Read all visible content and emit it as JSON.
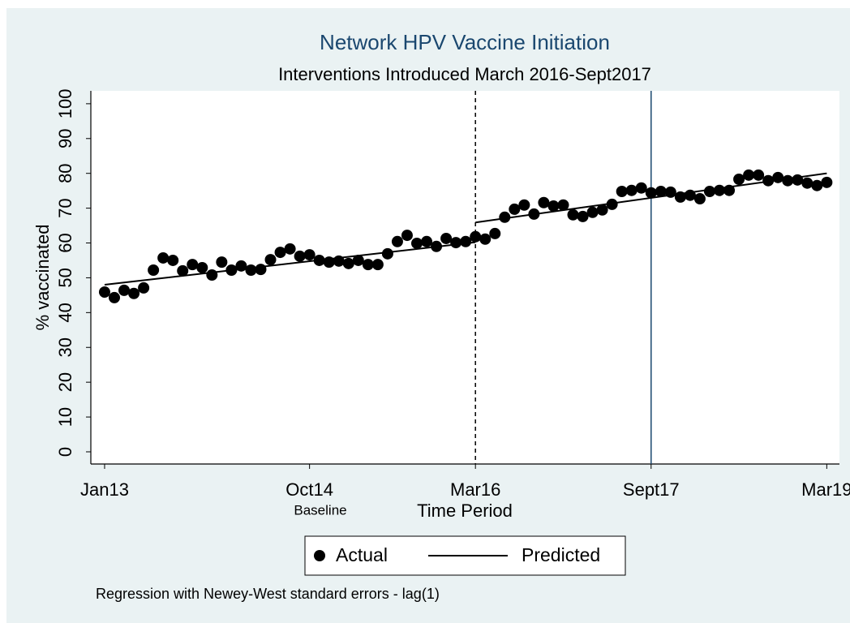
{
  "chart_data": {
    "type": "scatter",
    "title": "Network HPV Vaccine Initiation",
    "subtitle": "Interventions Introduced March 2016-Sept2017",
    "ylabel": "% vaccinated",
    "xlabel": "Time Period",
    "annotation": "Baseline",
    "note": "Regression with Newey-West standard errors - lag(1)",
    "xlim": [
      -1.41,
      75.3
    ],
    "ylim": [
      -3.5,
      103.7
    ],
    "xticks": [
      {
        "value": 0,
        "label": "Jan13"
      },
      {
        "value": 21,
        "label": "Oct14"
      },
      {
        "value": 38,
        "label": "Mar16"
      },
      {
        "value": 56,
        "label": "Sept17"
      },
      {
        "value": 74,
        "label": "Mar19"
      }
    ],
    "yticks": [
      0,
      10,
      20,
      30,
      40,
      50,
      60,
      70,
      80,
      90,
      100
    ],
    "reference_lines": [
      {
        "x": 38,
        "style": "dashed",
        "color": "#000000"
      },
      {
        "x": 56,
        "style": "solid",
        "color": "#1a476f"
      }
    ],
    "series": [
      {
        "name": "Actual",
        "type": "scatter",
        "color": "#000000",
        "x": [
          0,
          1,
          2,
          3,
          4,
          5,
          6,
          7,
          8,
          9,
          10,
          11,
          12,
          13,
          14,
          15,
          16,
          17,
          18,
          19,
          20,
          21,
          22,
          23,
          24,
          25,
          26,
          27,
          28,
          29,
          30,
          31,
          32,
          33,
          34,
          35,
          36,
          37,
          38,
          39,
          40,
          41,
          42,
          43,
          44,
          45,
          46,
          47,
          48,
          49,
          50,
          51,
          52,
          53,
          54,
          55,
          56,
          57,
          58,
          59,
          60,
          61,
          62,
          63,
          64,
          65,
          66,
          67,
          68,
          69,
          70,
          71,
          72,
          73,
          74
        ],
        "values": [
          45.9,
          44.3,
          46.4,
          45.5,
          47.1,
          52.2,
          55.7,
          55.0,
          52.0,
          53.8,
          52.9,
          50.8,
          54.5,
          52.2,
          53.4,
          52.2,
          52.4,
          55.2,
          57.3,
          58.3,
          56.2,
          56.6,
          55.0,
          54.5,
          54.8,
          54.1,
          55.0,
          53.8,
          53.8,
          56.9,
          60.4,
          62.2,
          59.9,
          60.4,
          59.0,
          61.3,
          60.1,
          60.4,
          61.8,
          61.1,
          62.7,
          67.4,
          69.7,
          70.9,
          68.3,
          71.6,
          70.6,
          70.9,
          68.1,
          67.6,
          68.8,
          69.5,
          71.1,
          74.8,
          75.1,
          75.8,
          74.4,
          74.8,
          74.6,
          73.2,
          73.7,
          72.7,
          74.8,
          75.1,
          75.1,
          78.3,
          79.5,
          79.5,
          77.9,
          78.8,
          77.9,
          78.1,
          77.2,
          76.5,
          77.4
        ]
      },
      {
        "name": "Predicted",
        "type": "line",
        "color": "#000000",
        "x": [
          0,
          38,
          null,
          38,
          74
        ],
        "values": [
          48.0,
          60.2,
          null,
          65.9,
          80.0
        ]
      }
    ]
  }
}
